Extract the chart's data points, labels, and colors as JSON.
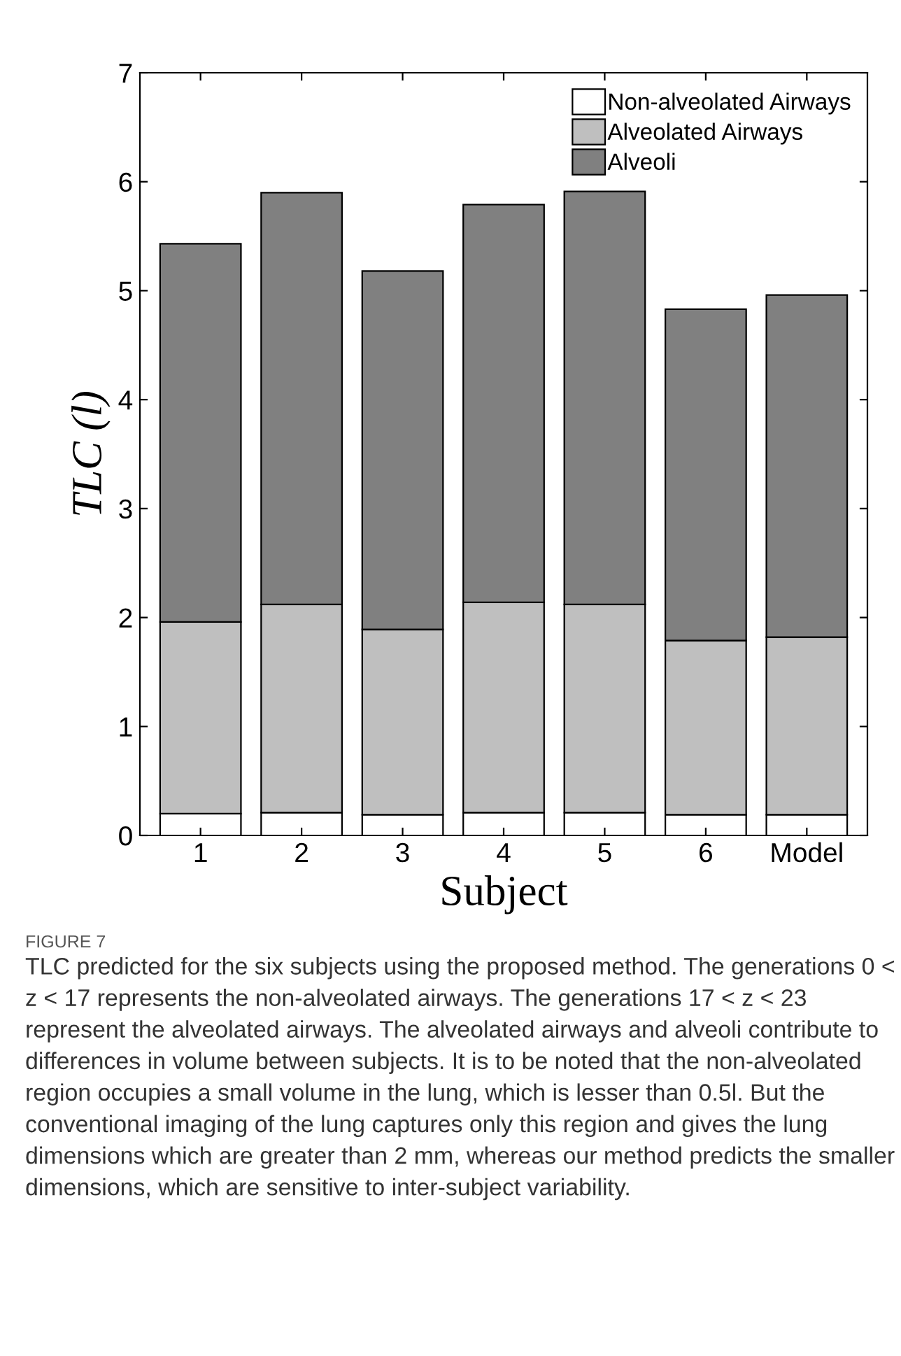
{
  "chart_data": {
    "type": "bar",
    "stacked": true,
    "xlabel": "Subject",
    "ylabel": "TLC (l)",
    "categories": [
      "1",
      "2",
      "3",
      "4",
      "5",
      "6",
      "Model"
    ],
    "series": [
      {
        "name": "Non-alveolated Airways",
        "color": "#ffffff",
        "values": [
          0.2,
          0.21,
          0.19,
          0.21,
          0.21,
          0.19,
          0.19
        ]
      },
      {
        "name": "Alveolated Airways",
        "color": "#bfbfbf",
        "values": [
          1.76,
          1.91,
          1.7,
          1.93,
          1.91,
          1.6,
          1.63
        ]
      },
      {
        "name": "Alveoli",
        "color": "#808080",
        "values": [
          3.47,
          3.78,
          3.29,
          3.65,
          3.79,
          3.04,
          3.14
        ]
      }
    ],
    "ylim": [
      0,
      7
    ],
    "yticks": [
      0,
      1,
      2,
      3,
      4,
      5,
      6,
      7
    ],
    "grid": false,
    "legend": "top right",
    "annotations": [
      "FIGURE 7",
      "TLC predicted for the six subjects using the proposed method. The generations 0 < z < 17 represents the non-alveolated airways. The generations 17 < z < 23 represent the alveolated airways. The alveolated airways and alveoli contribute to differences in volume between subjects. It is to be noted that the non-alveolated region occupies a small volume in the lung, which is lesser than 0.5l. But the conventional imaging of the lung captures only this region and gives the lung dimensions which are greater than 2 mm, whereas our method predicts the smaller dimensions, which are sensitive to inter-subject variability."
    ]
  }
}
